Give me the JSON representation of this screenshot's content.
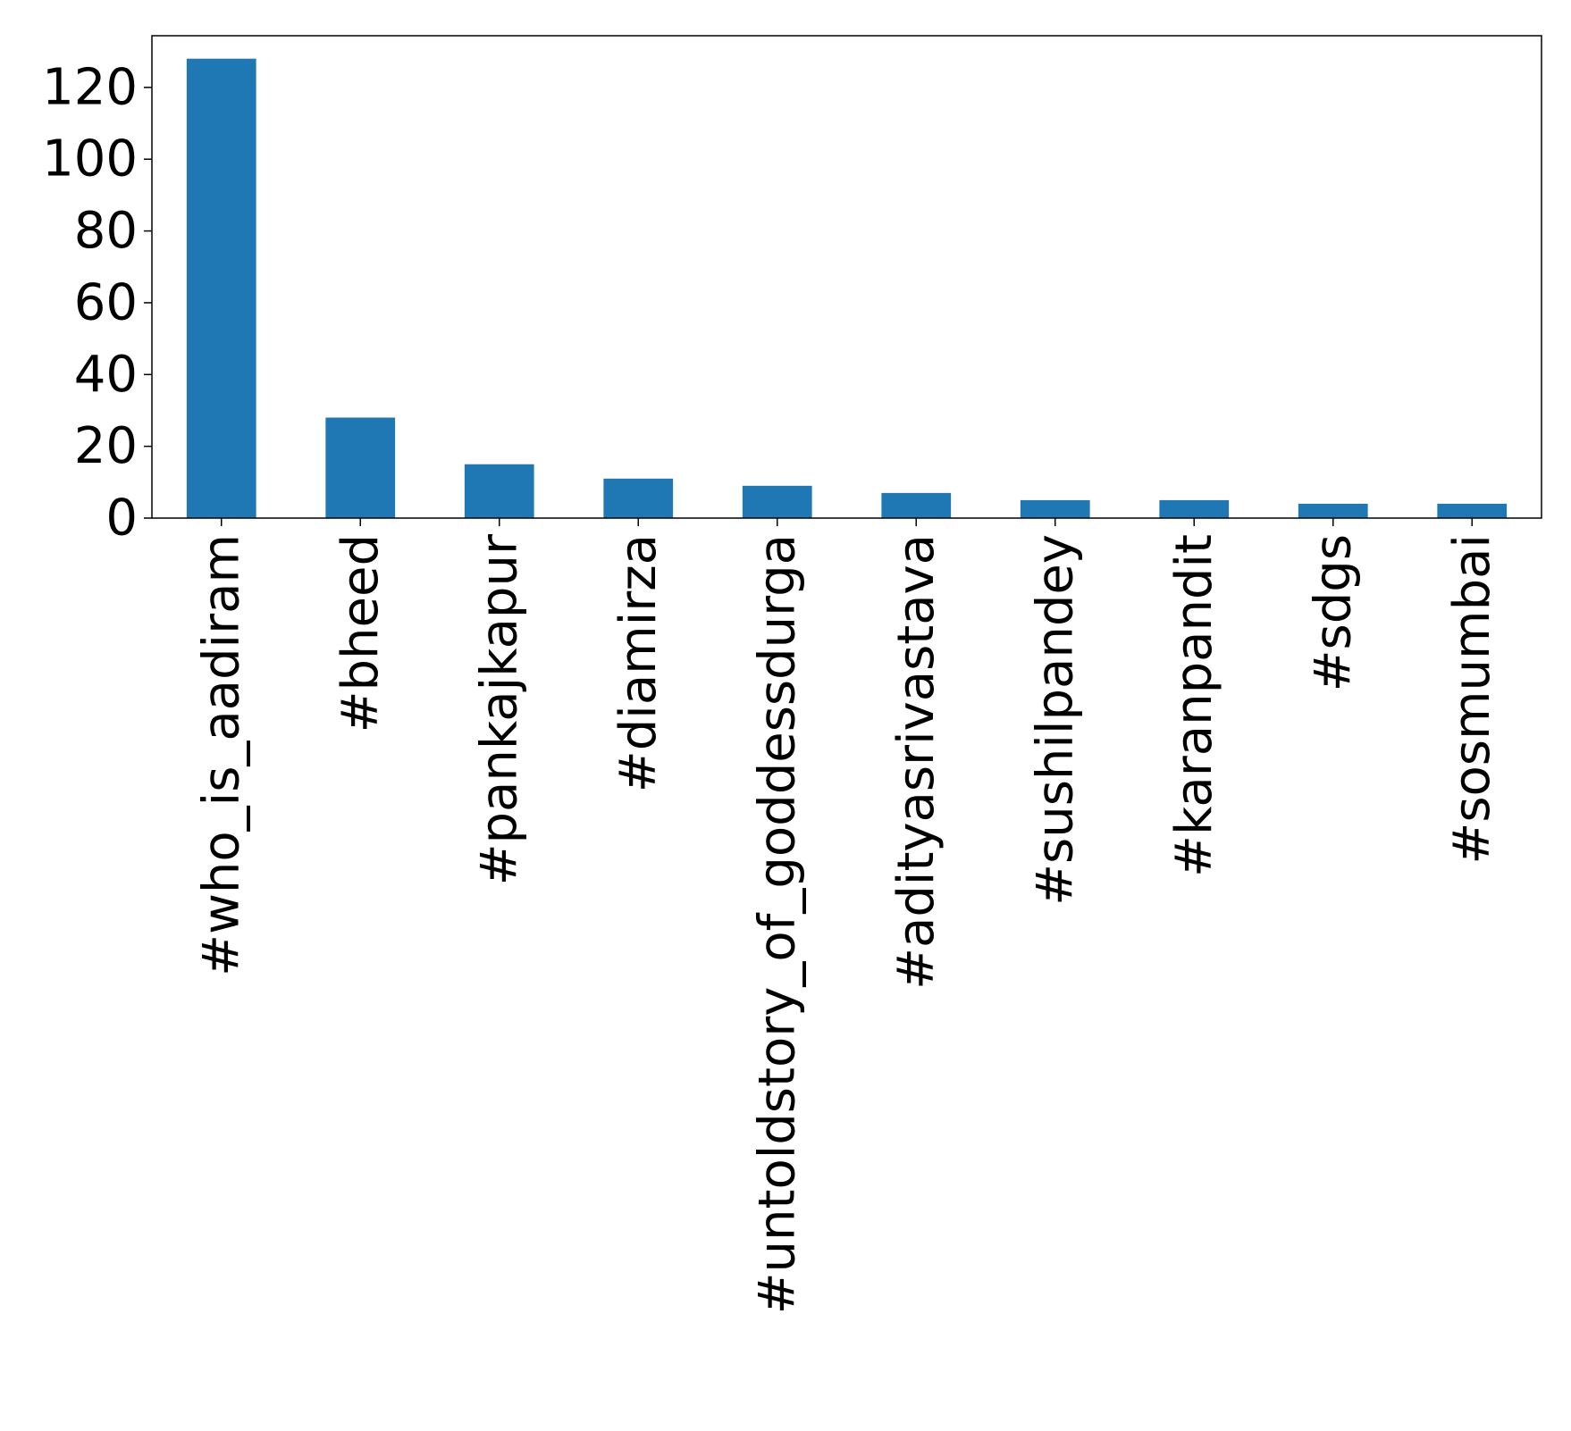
{
  "chart_data": {
    "type": "bar",
    "title": "",
    "xlabel": "",
    "ylabel": "",
    "categories": [
      "#who_is_aadiram",
      "#bheed",
      "#pankajkapur",
      "#diamirza",
      "#untoldstory_of_goddessdurga",
      "#adityasrivastava",
      "#sushilpandey",
      "#karanpandit",
      "#sdgs",
      "#sosmumbai"
    ],
    "values": [
      128,
      28,
      15,
      11,
      9,
      7,
      5,
      5,
      4,
      4
    ],
    "ylim": [
      0,
      134.4
    ],
    "yticks": [
      0,
      20,
      40,
      60,
      80,
      100,
      120
    ],
    "grid": false,
    "legend": "none",
    "bar_color": "#1f77b4",
    "axis_color": "#000000"
  }
}
